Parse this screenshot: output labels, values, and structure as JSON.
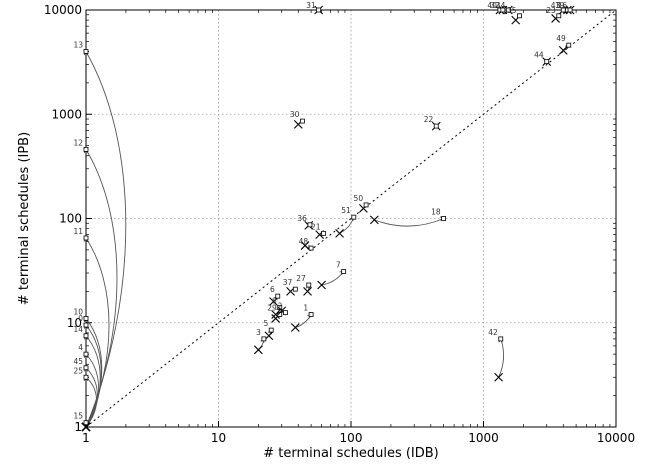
{
  "chart_data": {
    "type": "scatter",
    "title": "",
    "xlabel": "# terminal schedules (IDB)",
    "ylabel": "# terminal schedules (IPB)",
    "xscale": "log",
    "yscale": "log",
    "xlim": [
      1,
      10000
    ],
    "ylim": [
      1,
      10000
    ],
    "xticks": [
      1,
      10,
      100,
      1000,
      10000
    ],
    "yticks": [
      1,
      10,
      100,
      1000,
      10000
    ],
    "grid": true,
    "diagonal": "y = x (dotted)",
    "markers": {
      "x_marker": "IDB/IPB result",
      "square_marker": "labeled benchmark"
    },
    "series": [
      {
        "points": [
          {
            "label": "31",
            "x": 57,
            "y": 10000,
            "sx": 57,
            "sy": 10000
          },
          {
            "label": "40",
            "x": 1330,
            "y": 10000,
            "sx": 1330,
            "sy": 10000
          },
          {
            "label": "32",
            "x": 1400,
            "y": 10000,
            "sx": 1400,
            "sy": 10000
          },
          {
            "label": "34",
            "x": 1540,
            "y": 10000,
            "sx": 1540,
            "sy": 10000
          },
          {
            "label": "35",
            "x": 1750,
            "y": 8000,
            "sx": 1870,
            "sy": 8800
          },
          {
            "label": "23",
            "x": 3500,
            "y": 8300,
            "sx": 3700,
            "sy": 8800
          },
          {
            "label": "43",
            "x": 4000,
            "y": 10000,
            "sx": 4000,
            "sy": 10000
          },
          {
            "label": "19",
            "x": 4300,
            "y": 10000,
            "sx": 4300,
            "sy": 10000
          },
          {
            "label": "16",
            "x": 4500,
            "y": 10000,
            "sx": 4500,
            "sy": 10000
          },
          {
            "label": "49",
            "x": 4000,
            "y": 4100,
            "sx": 4400,
            "sy": 4600
          },
          {
            "label": "44",
            "x": 3000,
            "y": 3200,
            "sx": 3000,
            "sy": 3200
          },
          {
            "label": "30",
            "x": 40,
            "y": 800,
            "sx": 43,
            "sy": 860
          },
          {
            "label": "22",
            "x": 440,
            "y": 770,
            "sx": 440,
            "sy": 770
          },
          {
            "label": "50",
            "x": 124,
            "y": 125,
            "sx": 130,
            "sy": 135
          },
          {
            "label": "51",
            "x": 82,
            "y": 72,
            "sx": 105,
            "sy": 103
          },
          {
            "label": "18",
            "x": 150,
            "y": 97,
            "sx": 500,
            "sy": 100
          },
          {
            "label": "36",
            "x": 48,
            "y": 86,
            "sx": 49,
            "sy": 87
          },
          {
            "label": "21",
            "x": 58,
            "y": 70,
            "sx": 62,
            "sy": 72
          },
          {
            "label": "48",
            "x": 45,
            "y": 55,
            "sx": 50,
            "sy": 52
          },
          {
            "label": "7",
            "x": 60,
            "y": 23,
            "sx": 88,
            "sy": 31
          },
          {
            "label": "37",
            "x": 35,
            "y": 20,
            "sx": 38,
            "sy": 21
          },
          {
            "label": "27",
            "x": 47,
            "y": 20,
            "sx": 48,
            "sy": 23
          },
          {
            "label": "6",
            "x": 26,
            "y": 16,
            "sx": 28,
            "sy": 18
          },
          {
            "label": "8",
            "x": 27,
            "y": 12,
            "sx": 29,
            "sy": 14
          },
          {
            "label": "29",
            "x": 27,
            "y": 11,
            "sx": 29,
            "sy": 12
          },
          {
            "label": "2",
            "x": 30,
            "y": 13,
            "sx": 32,
            "sy": 12.5
          },
          {
            "label": "1",
            "x": 38,
            "y": 9,
            "sx": 50,
            "sy": 12
          },
          {
            "label": "5",
            "x": 24,
            "y": 7.5,
            "sx": 25,
            "sy": 8.5
          },
          {
            "label": "3",
            "x": 20,
            "y": 5.5,
            "sx": 22,
            "sy": 7
          },
          {
            "label": "42",
            "x": 1300,
            "y": 3,
            "sx": 1350,
            "sy": 7
          },
          {
            "label": "13",
            "x": 1,
            "y": 1,
            "sx": 1,
            "sy": 4000
          },
          {
            "label": "12",
            "x": 1,
            "y": 1,
            "sx": 1,
            "sy": 460
          },
          {
            "label": "11",
            "x": 1,
            "y": 1,
            "sx": 1,
            "sy": 65
          },
          {
            "label": "10",
            "x": 1,
            "y": 1,
            "sx": 1,
            "sy": 11
          },
          {
            "label": "0",
            "x": 1,
            "y": 1,
            "sx": 1,
            "sy": 9.5
          },
          {
            "label": "14",
            "x": 1,
            "y": 1,
            "sx": 1,
            "sy": 7.5
          },
          {
            "label": "4",
            "x": 1,
            "y": 1,
            "sx": 1,
            "sy": 5
          },
          {
            "label": "45",
            "x": 1,
            "y": 1,
            "sx": 1,
            "sy": 3.7
          },
          {
            "label": "25",
            "x": 1,
            "y": 1,
            "sx": 1,
            "sy": 3.0
          },
          {
            "label": "15",
            "x": 1,
            "y": 1,
            "sx": 1,
            "sy": 1.1
          }
        ]
      }
    ]
  }
}
